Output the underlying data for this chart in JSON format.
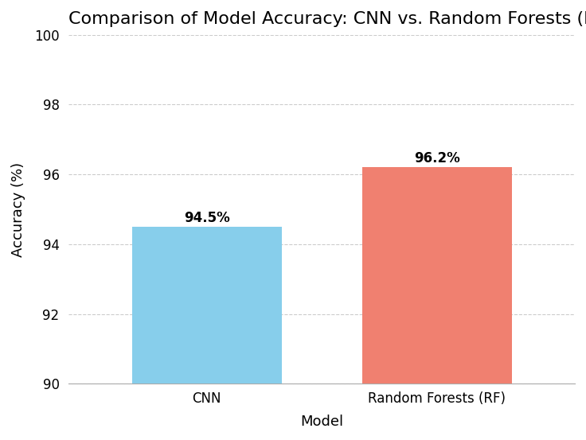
{
  "categories": [
    "CNN",
    "Random Forests (RF)"
  ],
  "values": [
    94.5,
    96.2
  ],
  "bar_colors": [
    "#87CEEB",
    "#F08070"
  ],
  "bar_labels": [
    "94.5%",
    "96.2%"
  ],
  "title": "Comparison of Model Accuracy: CNN vs. Random Forests (RF)",
  "xlabel": "Model",
  "ylabel": "Accuracy (%)",
  "ylim": [
    90,
    100
  ],
  "yticks": [
    90,
    92,
    94,
    96,
    98,
    100
  ],
  "title_fontsize": 16,
  "axis_label_fontsize": 13,
  "tick_fontsize": 12,
  "annotation_fontsize": 12,
  "background_color": "#ffffff",
  "grid_color": "#cccccc",
  "bar_width": 0.65
}
